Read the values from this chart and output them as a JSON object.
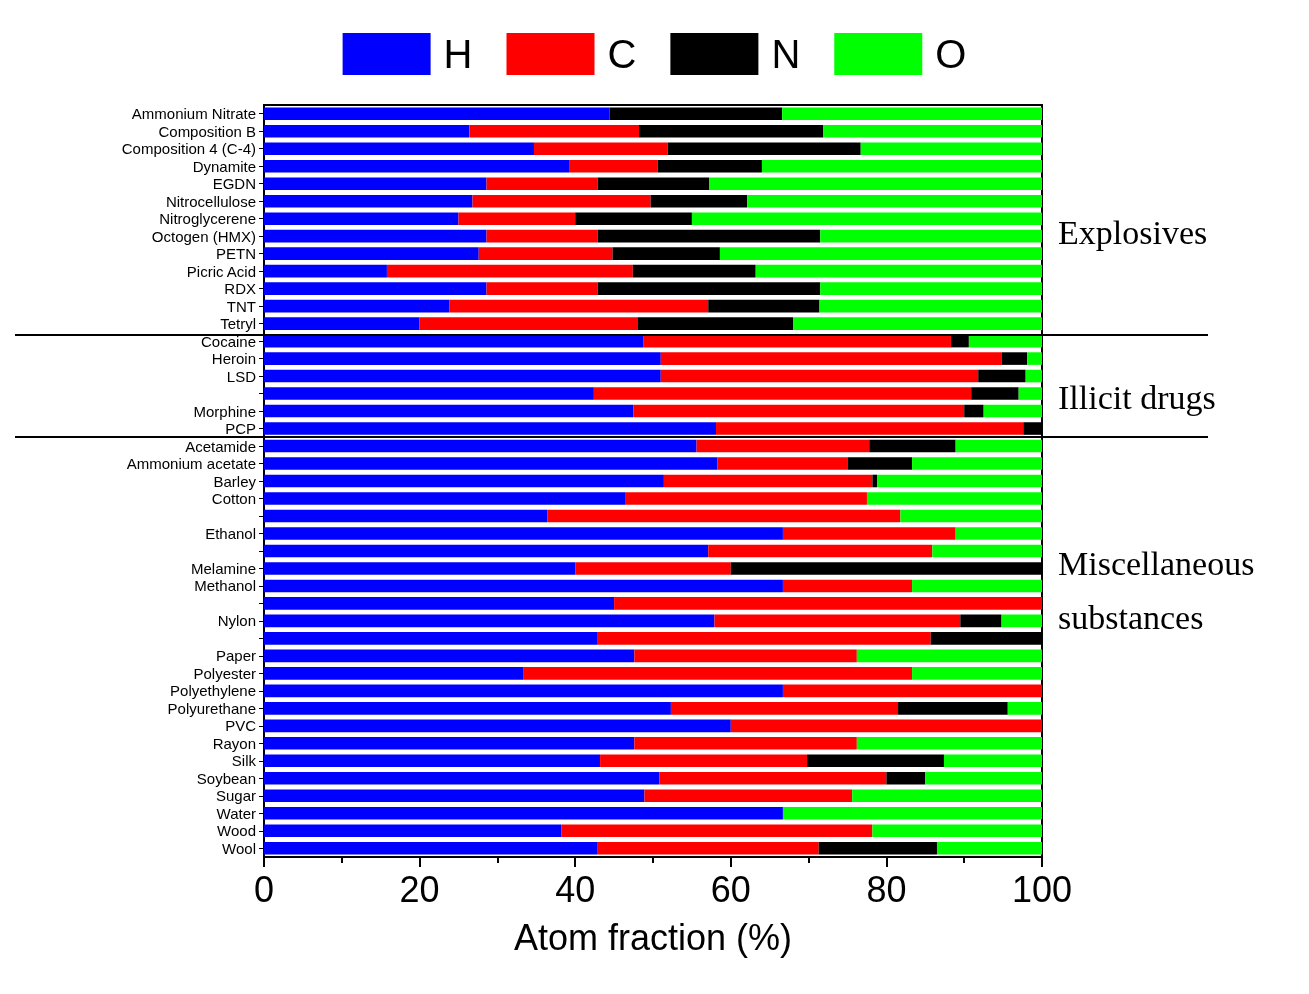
{
  "chart_data": {
    "type": "bar",
    "orientation": "horizontal",
    "stacked": true,
    "xlabel": "Atom fraction (%)",
    "xlim": [
      0,
      100
    ],
    "xticks": [
      0,
      20,
      40,
      60,
      80,
      100
    ],
    "grid": false,
    "legend": "top",
    "categories": [
      "Ammonium Nitrate",
      "Composition B",
      "Composition 4 (C-4)",
      "Dynamite",
      "EGDN",
      "Nitrocellulose",
      "Nitroglycerene",
      "Octogen (HMX)",
      "PETN",
      "Picric Acid",
      "RDX",
      "TNT",
      "Tetryl",
      "Cocaine",
      "Heroin",
      "LSD",
      null,
      "Morphine",
      "PCP",
      "Acetamide",
      "Ammonium acetate",
      "Barley",
      "Cotton",
      null,
      "Ethanol",
      null,
      "Melamine",
      "Methanol",
      null,
      "Nylon",
      null,
      "Paper",
      "Polyester",
      "Polyethylene",
      "Polyurethane",
      "PVC",
      "Rayon",
      "Silk",
      "Soybean",
      "Sugar",
      "Water",
      "Wood",
      "Wool"
    ],
    "series": [
      {
        "name": "H",
        "color": "#0000ff",
        "values": [
          44.4,
          26.4,
          34.7,
          39.3,
          28.6,
          26.8,
          25,
          28.6,
          27.6,
          15.8,
          28.6,
          23.8,
          20,
          48.8,
          51,
          51,
          42.4,
          47.5,
          58.1,
          55.6,
          58.3,
          51.4,
          46.5,
          36.4,
          66.7,
          57.1,
          40,
          66.7,
          45,
          57.9,
          42.9,
          47.6,
          33.3,
          66.7,
          52.3,
          60,
          47.6,
          43.2,
          50.8,
          48.9,
          66.7,
          38.2,
          42.9
        ]
      },
      {
        "name": "C",
        "color": "#ff0000",
        "values": [
          0,
          21.8,
          17.2,
          11.3,
          14.3,
          22.9,
          15,
          14.3,
          17.2,
          31.6,
          14.3,
          33.3,
          28,
          39.5,
          43.8,
          40.8,
          48.5,
          42.5,
          39.5,
          22.2,
          16.7,
          26.8,
          31,
          45.4,
          22.2,
          28.8,
          20,
          16.6,
          55,
          31.6,
          42.8,
          28.6,
          50,
          33.3,
          29.2,
          40,
          28.6,
          26.6,
          29.2,
          26.7,
          0,
          40,
          28.4
        ]
      },
      {
        "name": "N",
        "color": "#000000",
        "values": [
          22.2,
          23.7,
          24.8,
          13.4,
          14.3,
          12.4,
          15,
          28.6,
          13.8,
          15.8,
          28.6,
          14.3,
          20,
          2.3,
          3.3,
          6.1,
          6.1,
          2.5,
          2.4,
          11.1,
          8.3,
          0.6,
          0,
          0,
          0,
          0,
          40,
          0,
          0,
          5.3,
          14.3,
          0,
          0,
          0,
          14.1,
          0,
          0,
          17.6,
          5,
          0,
          0,
          0,
          15.2
        ]
      },
      {
        "name": "O",
        "color": "#00ff00",
        "values": [
          33.4,
          28.1,
          23.3,
          36,
          42.8,
          37.9,
          45,
          28.5,
          41.4,
          36.8,
          28.5,
          28.6,
          32,
          9.4,
          1.9,
          2.1,
          3,
          7.5,
          0,
          11.1,
          16.7,
          21.2,
          22.5,
          18.2,
          11.1,
          14.1,
          0,
          16.7,
          0,
          5.2,
          0,
          23.8,
          16.7,
          0,
          4.4,
          0,
          23.8,
          12.6,
          15,
          24.4,
          33.3,
          21.8,
          13.5
        ]
      }
    ],
    "annotations": [
      "Explosives",
      "Illicit drugs",
      "Miscellaneous substances"
    ]
  }
}
